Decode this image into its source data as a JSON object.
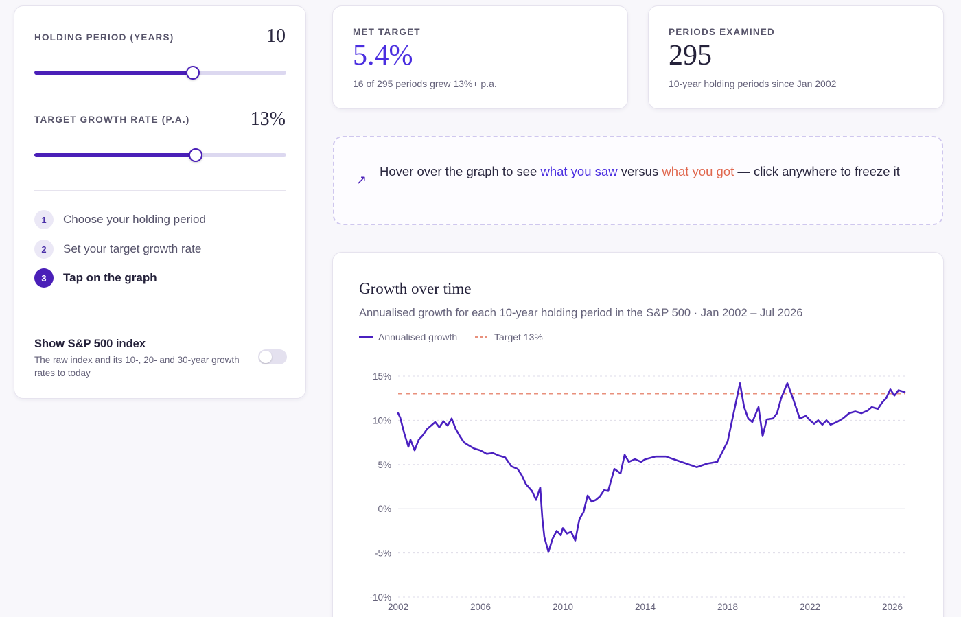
{
  "controls": {
    "holding_label": "HOLDING PERIOD (YEARS)",
    "holding_value": "10",
    "holding_fraction": 0.63,
    "target_label": "TARGET GROWTH RATE (P.A.)",
    "target_value": "13%",
    "target_fraction": 0.64
  },
  "steps": [
    {
      "num": "1",
      "label": "Choose your holding period"
    },
    {
      "num": "2",
      "label": "Set your target growth rate"
    },
    {
      "num": "3",
      "label": "Tap on the graph"
    }
  ],
  "toggle": {
    "title": "Show S&P 500 index",
    "desc": "The raw index and its 10-, 20- and 30-year growth rates to today",
    "on": false
  },
  "met": {
    "label": "MET TARGET",
    "value": "5.4%",
    "note": "16 of 295 periods grew 13%+ p.a."
  },
  "periods": {
    "label": "PERIODS EXAMINED",
    "value": "295",
    "note": "10-year holding periods since Jan 2002"
  },
  "hint": {
    "icon": "arrow-up-right-icon",
    "pre": "Hover over the graph to see ",
    "saw": "what you saw",
    "mid": " versus ",
    "got": "what you got",
    "post": " — click anywhere to freeze it"
  },
  "colors": {
    "accent": "#4a1fb8",
    "line": "#4a20c0",
    "target": "#e8907c",
    "got": "#e0674e",
    "saw": "#4a2ee0"
  },
  "chart_data": {
    "type": "line",
    "title": "Growth over time",
    "subtitle": "Annualised growth for each 10-year holding period in the S&P 500 · Jan 2002 – Jul 2026",
    "legend": [
      "Annualised growth",
      "Target 13%"
    ],
    "legend_placement": "top-left",
    "target": 13,
    "ylim": [
      -10,
      15
    ],
    "y_ticks": [
      "15%",
      "10%",
      "5%",
      "0%",
      "-5%",
      "-10%"
    ],
    "y_tick_values": [
      15,
      10,
      5,
      0,
      -5,
      -10
    ],
    "xlim": [
      2002,
      2026.6
    ],
    "x_ticks": [
      "2002",
      "2006",
      "2010",
      "2014",
      "2018",
      "2022",
      "2026"
    ],
    "x_tick_values": [
      2002,
      2006,
      2010,
      2014,
      2018,
      2022,
      2026
    ],
    "grid": true,
    "series": [
      {
        "name": "Annualised growth",
        "x": [
          2002.0,
          2002.1,
          2002.3,
          2002.5,
          2002.6,
          2002.8,
          2003.0,
          2003.2,
          2003.4,
          2003.6,
          2003.8,
          2004.0,
          2004.2,
          2004.4,
          2004.6,
          2004.8,
          2005.0,
          2005.2,
          2005.4,
          2005.7,
          2006.0,
          2006.3,
          2006.6,
          2006.9,
          2007.2,
          2007.5,
          2007.8,
          2008.0,
          2008.2,
          2008.5,
          2008.7,
          2008.9,
          2009.0,
          2009.1,
          2009.3,
          2009.5,
          2009.7,
          2009.9,
          2010.0,
          2010.2,
          2010.4,
          2010.6,
          2010.8,
          2011.0,
          2011.2,
          2011.4,
          2011.6,
          2011.8,
          2012.0,
          2012.2,
          2012.5,
          2012.8,
          2013.0,
          2013.2,
          2013.5,
          2013.8,
          2014.0,
          2014.5,
          2015.0,
          2015.5,
          2016.0,
          2016.5,
          2017.0,
          2017.5,
          2018.0,
          2018.2,
          2018.4,
          2018.6,
          2018.8,
          2019.0,
          2019.2,
          2019.5,
          2019.7,
          2019.9,
          2020.2,
          2020.4,
          2020.6,
          2020.9,
          2021.2,
          2021.5,
          2021.8,
          2022.0,
          2022.2,
          2022.4,
          2022.6,
          2022.8,
          2023.0,
          2023.3,
          2023.6,
          2023.9,
          2024.2,
          2024.5,
          2024.8,
          2025.0,
          2025.3,
          2025.5,
          2025.7,
          2025.9,
          2026.1,
          2026.3,
          2026.6
        ],
        "values": [
          10.8,
          10.3,
          8.5,
          7.0,
          7.8,
          6.6,
          7.8,
          8.3,
          9.0,
          9.4,
          9.8,
          9.2,
          9.9,
          9.4,
          10.2,
          9.0,
          8.2,
          7.5,
          7.2,
          6.8,
          6.6,
          6.2,
          6.3,
          6.0,
          5.8,
          4.8,
          4.5,
          3.8,
          2.8,
          2.0,
          1.0,
          2.4,
          -1.0,
          -3.2,
          -4.9,
          -3.4,
          -2.5,
          -3.0,
          -2.2,
          -2.8,
          -2.6,
          -3.6,
          -1.2,
          -0.4,
          1.5,
          0.8,
          1.0,
          1.4,
          2.1,
          2.0,
          4.5,
          4.0,
          6.1,
          5.3,
          5.6,
          5.3,
          5.6,
          5.9,
          5.9,
          5.5,
          5.1,
          4.7,
          5.1,
          5.3,
          7.6,
          9.8,
          12.0,
          14.2,
          11.5,
          10.2,
          9.8,
          11.5,
          8.2,
          10.1,
          10.2,
          10.8,
          12.5,
          14.2,
          12.3,
          10.2,
          10.5,
          10.0,
          9.6,
          10.0,
          9.5,
          10.0,
          9.5,
          9.8,
          10.2,
          10.8,
          11.0,
          10.8,
          11.1,
          11.5,
          11.3,
          12.0,
          12.5,
          13.5,
          12.8,
          13.4,
          13.2
        ]
      }
    ]
  }
}
